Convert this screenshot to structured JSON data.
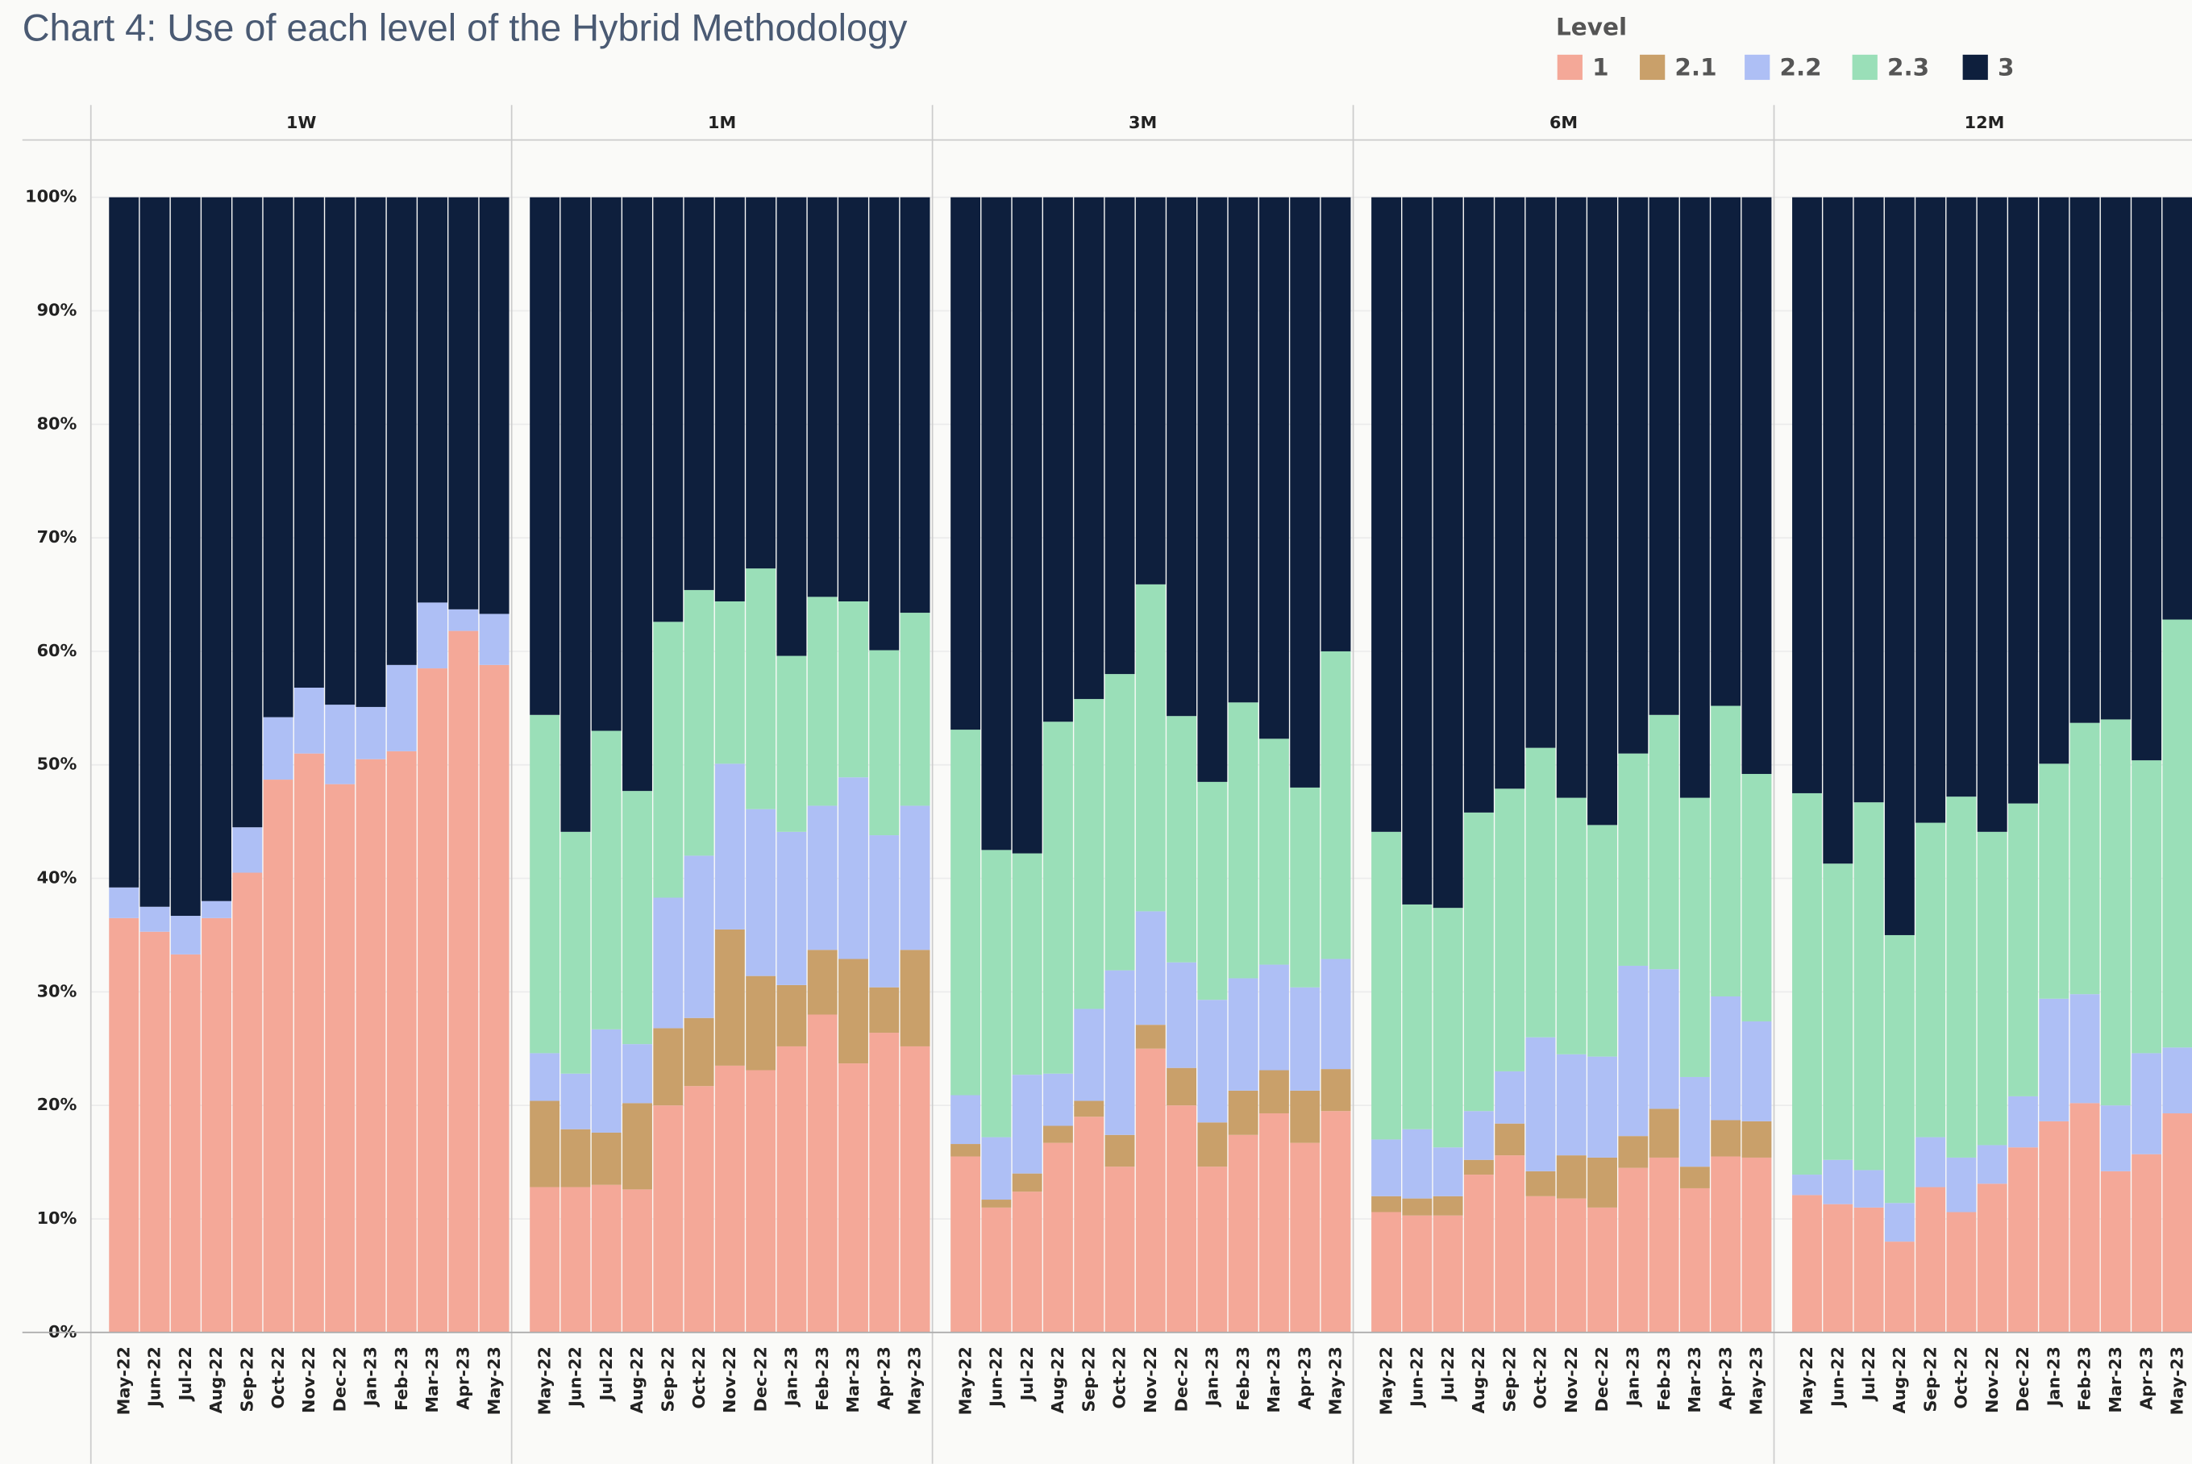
{
  "chart_data": {
    "type": "bar",
    "stacked": true,
    "title": "Chart 4: Use of each level of the Hybrid Methodology",
    "legend_title": "Level",
    "legend": [
      {
        "name": "1",
        "color": "#f4a898"
      },
      {
        "name": "2.1",
        "color": "#c9a06a"
      },
      {
        "name": "2.2",
        "color": "#aebff5"
      },
      {
        "name": "2.3",
        "color": "#9adfb8"
      },
      {
        "name": "3",
        "color": "#0e1f3d"
      }
    ],
    "ylim": [
      0,
      100
    ],
    "yticks": [
      {
        "value": 0,
        "label": "0%"
      },
      {
        "value": 10,
        "label": "10%"
      },
      {
        "value": 20,
        "label": "20%"
      },
      {
        "value": 30,
        "label": "30%"
      },
      {
        "value": 40,
        "label": "40%"
      },
      {
        "value": 50,
        "label": "50%"
      },
      {
        "value": 60,
        "label": "60%"
      },
      {
        "value": 70,
        "label": "70%"
      },
      {
        "value": 80,
        "label": "80%"
      },
      {
        "value": 90,
        "label": "90%"
      },
      {
        "value": 100,
        "label": "100%"
      }
    ],
    "panels": [
      {
        "label": "1W",
        "categories": [
          "May-22",
          "Jun-22",
          "Jul-22",
          "Aug-22",
          "Sep-22",
          "Oct-22",
          "Nov-22",
          "Dec-22",
          "Jan-23",
          "Feb-23",
          "Mar-23",
          "Apr-23",
          "May-23"
        ],
        "series": [
          {
            "values": [
              36.5,
              35.3,
              33.3,
              36.5,
              40.5,
              48.7,
              51,
              48.3,
              50.5,
              51.2,
              58.5,
              61.8,
              58.8
            ]
          },
          {
            "values": [
              0,
              0,
              0,
              0,
              0,
              0,
              0,
              0,
              0,
              0,
              0,
              0,
              0
            ]
          },
          {
            "values": [
              2.7,
              2.2,
              3.4,
              1.5,
              4,
              5.5,
              5.8,
              7,
              4.6,
              7.6,
              5.8,
              1.9,
              4.5
            ]
          },
          {
            "values": [
              0,
              0,
              0,
              0,
              0,
              0,
              0,
              0,
              0,
              0,
              0,
              0,
              0
            ]
          },
          {
            "values": [
              60.8,
              62.5,
              63.3,
              62,
              55.5,
              45.8,
              43.2,
              44.7,
              44.9,
              41.2,
              35.7,
              36.3,
              36.7
            ]
          }
        ]
      },
      {
        "label": "1M",
        "categories": [
          "May-22",
          "Jun-22",
          "Jul-22",
          "Aug-22",
          "Sep-22",
          "Oct-22",
          "Nov-22",
          "Dec-22",
          "Jan-23",
          "Feb-23",
          "Mar-23",
          "Apr-23",
          "May-23"
        ],
        "series": [
          {
            "values": [
              12.8,
              12.8,
              13,
              12.6,
              20,
              21.7,
              23.5,
              23.1,
              25.2,
              28,
              23.7,
              26.4,
              25.2
            ]
          },
          {
            "values": [
              7.6,
              5.1,
              4.6,
              7.6,
              6.8,
              6,
              12,
              8.3,
              5.4,
              5.7,
              9.2,
              4,
              8.5
            ]
          },
          {
            "values": [
              4.2,
              4.9,
              9.1,
              5.2,
              11.5,
              14.3,
              14.6,
              14.7,
              13.5,
              12.7,
              16,
              13.4,
              12.7
            ]
          },
          {
            "values": [
              29.8,
              21.3,
              26.3,
              22.3,
              24.3,
              23.4,
              14.3,
              21.2,
              15.5,
              18.4,
              15.5,
              16.3,
              17
            ]
          },
          {
            "values": [
              45.6,
              55.9,
              47,
              52.3,
              37.4,
              34.6,
              35.6,
              32.7,
              40.4,
              35.2,
              35.6,
              39.9,
              36.6
            ]
          }
        ]
      },
      {
        "label": "3M",
        "categories": [
          "May-22",
          "Jun-22",
          "Jul-22",
          "Aug-22",
          "Sep-22",
          "Oct-22",
          "Nov-22",
          "Dec-22",
          "Jan-23",
          "Feb-23",
          "Mar-23",
          "Apr-23",
          "May-23"
        ],
        "series": [
          {
            "values": [
              15.5,
              11,
              12.4,
              16.7,
              19,
              14.6,
              25,
              20,
              14.6,
              17.4,
              19.3,
              16.7,
              19.5
            ]
          },
          {
            "values": [
              1.1,
              0.7,
              1.6,
              1.5,
              1.4,
              2.8,
              2.1,
              3.3,
              3.9,
              3.9,
              3.8,
              4.6,
              3.7
            ]
          },
          {
            "values": [
              4.3,
              5.5,
              8.7,
              4.6,
              8.1,
              14.5,
              10,
              9.3,
              10.8,
              9.9,
              9.3,
              9.1,
              9.7
            ]
          },
          {
            "values": [
              32.2,
              25.3,
              19.5,
              31,
              27.3,
              26.1,
              28.8,
              21.7,
              19.2,
              24.3,
              19.9,
              17.6,
              27.1
            ]
          },
          {
            "values": [
              46.9,
              57.5,
              57.8,
              46.2,
              44.2,
              42,
              34.1,
              45.7,
              51.5,
              44.5,
              47.7,
              52,
              40
            ]
          }
        ]
      },
      {
        "label": "6M",
        "categories": [
          "May-22",
          "Jun-22",
          "Jul-22",
          "Aug-22",
          "Sep-22",
          "Oct-22",
          "Nov-22",
          "Dec-22",
          "Jan-23",
          "Feb-23",
          "Mar-23",
          "Apr-23",
          "May-23"
        ],
        "series": [
          {
            "values": [
              10.6,
              10.3,
              10.3,
              13.9,
              15.6,
              12,
              11.8,
              11,
              14.5,
              15.4,
              12.7,
              15.5,
              15.4
            ]
          },
          {
            "values": [
              1.4,
              1.5,
              1.7,
              1.3,
              2.8,
              2.2,
              3.8,
              4.4,
              2.8,
              4.3,
              1.9,
              3.2,
              3.2
            ]
          },
          {
            "values": [
              5,
              6.1,
              4.3,
              4.3,
              4.6,
              11.8,
              8.9,
              8.9,
              15,
              12.3,
              7.9,
              10.9,
              8.8
            ]
          },
          {
            "values": [
              27.1,
              19.8,
              21.1,
              26.3,
              24.9,
              25.5,
              22.6,
              20.4,
              18.7,
              22.4,
              24.6,
              25.6,
              21.8
            ]
          },
          {
            "values": [
              55.9,
              62.3,
              62.6,
              54.2,
              52.1,
              48.5,
              52.9,
              55.3,
              49,
              45.6,
              52.9,
              44.8,
              50.8
            ]
          }
        ]
      },
      {
        "label": "12M",
        "categories": [
          "May-22",
          "Jun-22",
          "Jul-22",
          "Aug-22",
          "Sep-22",
          "Oct-22",
          "Nov-22",
          "Dec-22",
          "Jan-23",
          "Feb-23",
          "Mar-23",
          "Apr-23",
          "May-23"
        ],
        "series": [
          {
            "values": [
              12.1,
              11.3,
              11,
              8,
              12.8,
              10.6,
              13.1,
              16.3,
              18.6,
              20.2,
              14.2,
              15.7,
              19.3
            ]
          },
          {
            "values": [
              0,
              0,
              0,
              0,
              0,
              0,
              0,
              0,
              0,
              0,
              0,
              0,
              0
            ]
          },
          {
            "values": [
              1.8,
              3.9,
              3.3,
              3.4,
              4.4,
              4.8,
              3.4,
              4.5,
              10.8,
              9.6,
              5.8,
              8.9,
              5.8
            ]
          },
          {
            "values": [
              33.6,
              26.1,
              32.4,
              23.6,
              27.7,
              31.8,
              27.6,
              25.8,
              20.7,
              23.9,
              34,
              25.8,
              37.7
            ]
          },
          {
            "values": [
              52.5,
              58.7,
              53.3,
              65,
              55.1,
              52.8,
              55.9,
              53.4,
              49.9,
              46.3,
              46,
              49.6,
              37.2
            ]
          }
        ]
      }
    ]
  }
}
